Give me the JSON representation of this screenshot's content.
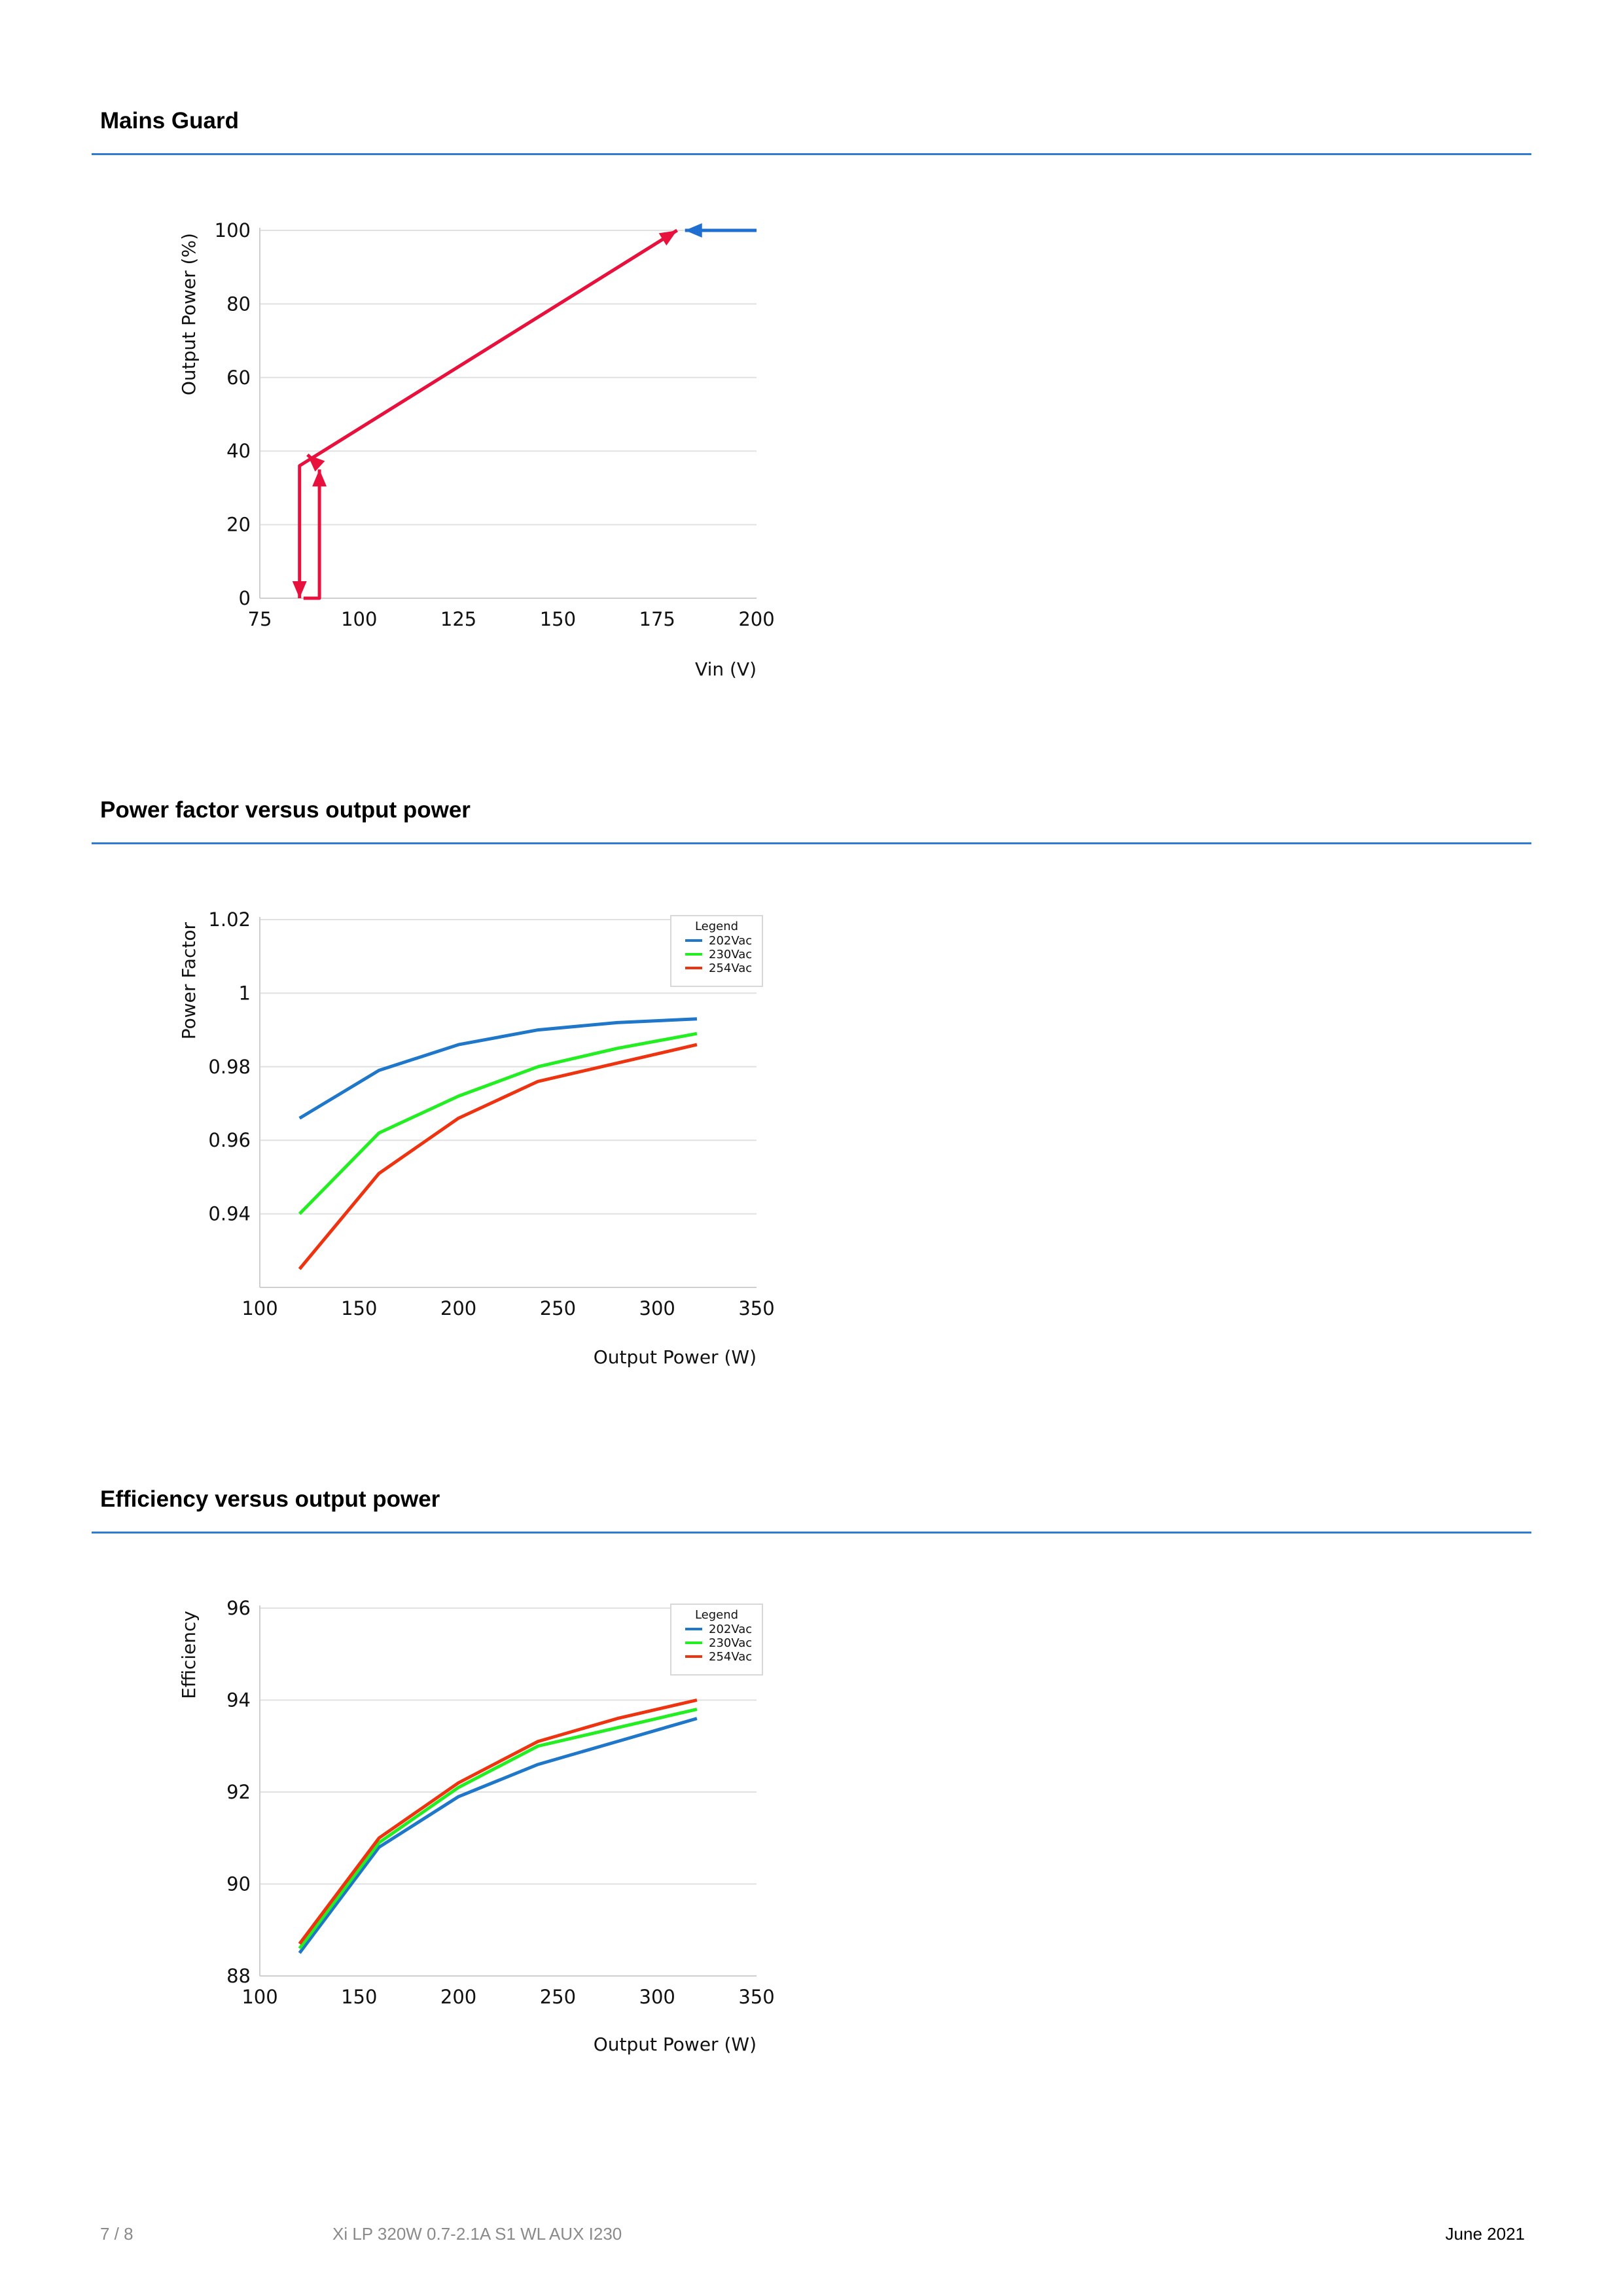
{
  "sections": {
    "mains_guard_title": "Mains Guard",
    "power_factor_title": "Power factor versus output power",
    "efficiency_title": "Efficiency versus output power"
  },
  "footer": {
    "page": "7 / 8",
    "product": "Xi LP 320W 0.7-2.1A S1 WL AUX I230",
    "date": "June 2021"
  },
  "colors": {
    "rule": "#2f7bd3",
    "series_202": "#1f77c9",
    "series_230": "#22ee22",
    "series_254": "#ee3311",
    "mains_down": "#e8113d",
    "mains_up": "#1f6fd1"
  },
  "chart_data": [
    {
      "id": "mains",
      "type": "line",
      "xlabel": "Vin (V)",
      "ylabel": "Output Power (%)",
      "xlim": [
        75,
        200
      ],
      "ylim": [
        0,
        100
      ],
      "xticks": [
        75,
        100,
        125,
        150,
        175,
        200
      ],
      "yticks": [
        0,
        20,
        40,
        60,
        80,
        100
      ],
      "grid": true,
      "series": [
        {
          "key": "increasing",
          "color_key": "mains_up",
          "points": [
            [
              200,
              100
            ],
            [
              182,
              100
            ]
          ],
          "arrow_end": true
        },
        {
          "key": "decreasing",
          "color_key": "mains_down",
          "points": [
            [
              180,
              100
            ],
            [
              85,
              36
            ],
            [
              85,
              0
            ]
          ],
          "arrow_end": true
        },
        {
          "key": "recovery",
          "color_key": "mains_down",
          "points": [
            [
              86,
              0
            ],
            [
              90,
              0
            ],
            [
              90,
              35
            ]
          ],
          "arrow_end": true
        },
        {
          "key": "ramp",
          "color_key": "mains_down",
          "points": [
            [
              88,
              38
            ],
            [
              180,
              100
            ]
          ],
          "arrow_end": true
        },
        {
          "key": "ramp_start",
          "color_key": "mains_down",
          "points": [
            [
              90,
              36
            ],
            [
              87,
              39
            ]
          ],
          "arrow_end": true
        }
      ]
    },
    {
      "id": "pf",
      "type": "line",
      "xlabel": "Output Power (W)",
      "ylabel": "Power Factor",
      "xlim": [
        100,
        350
      ],
      "ylim": [
        0.92,
        1.02
      ],
      "xticks": [
        100,
        150,
        200,
        250,
        300,
        350
      ],
      "yticks": [
        0.94,
        0.96,
        0.98,
        1,
        1.02
      ],
      "ytick_labels": [
        "0.94",
        "0.96",
        "0.98",
        "1",
        "1.02"
      ],
      "grid": true,
      "legend": {
        "title": "Legend",
        "position": "top-right"
      },
      "x": [
        120,
        160,
        200,
        240,
        280,
        320
      ],
      "series": [
        {
          "name": "202Vac",
          "color_key": "series_202",
          "values": [
            0.966,
            0.979,
            0.986,
            0.99,
            0.992,
            0.993
          ]
        },
        {
          "name": "230Vac",
          "color_key": "series_230",
          "values": [
            0.94,
            0.962,
            0.972,
            0.98,
            0.985,
            0.989
          ]
        },
        {
          "name": "254Vac",
          "color_key": "series_254",
          "values": [
            0.925,
            0.951,
            0.966,
            0.976,
            0.981,
            0.986
          ]
        }
      ]
    },
    {
      "id": "eff",
      "type": "line",
      "xlabel": "Output Power (W)",
      "ylabel": "Efficiency",
      "xlim": [
        100,
        350
      ],
      "ylim": [
        88,
        96
      ],
      "xticks": [
        100,
        150,
        200,
        250,
        300,
        350
      ],
      "yticks": [
        88,
        90,
        92,
        94,
        96
      ],
      "grid": true,
      "legend": {
        "title": "Legend",
        "position": "top-right"
      },
      "x": [
        120,
        160,
        200,
        240,
        280,
        320
      ],
      "series": [
        {
          "name": "202Vac",
          "color_key": "series_202",
          "values": [
            88.5,
            90.8,
            91.9,
            92.6,
            93.1,
            93.6
          ]
        },
        {
          "name": "230Vac",
          "color_key": "series_230",
          "values": [
            88.6,
            90.9,
            92.1,
            93.0,
            93.4,
            93.8
          ]
        },
        {
          "name": "254Vac",
          "color_key": "series_254",
          "values": [
            88.7,
            91.0,
            92.2,
            93.1,
            93.6,
            94.0
          ]
        }
      ]
    }
  ]
}
